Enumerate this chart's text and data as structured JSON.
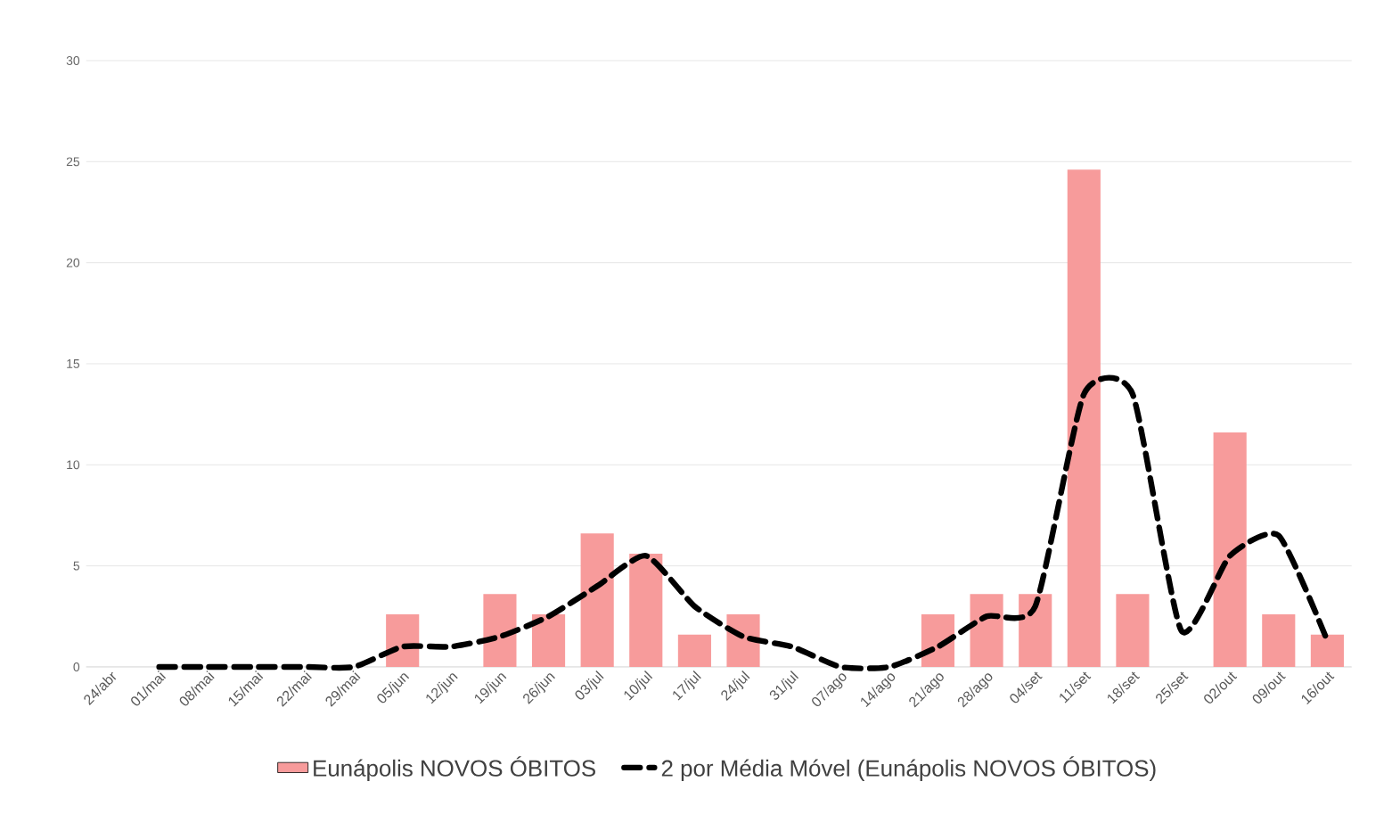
{
  "chart_data": {
    "type": "bar",
    "categories": [
      "24/abr",
      "01/mai",
      "08/mai",
      "15/mai",
      "22/mai",
      "29/mai",
      "05/jun",
      "12/jun",
      "19/jun",
      "26/jun",
      "03/jul",
      "10/jul",
      "17/jul",
      "24/jul",
      "31/jul",
      "07/ago",
      "14/ago",
      "21/ago",
      "28/ago",
      "04/set",
      "11/set",
      "18/set",
      "25/set",
      "02/out",
      "09/out",
      "16/out"
    ],
    "series": [
      {
        "name": "Eunápolis NOVOS ÓBITOS",
        "color": "#f79b9b",
        "values": [
          0,
          0,
          0,
          0,
          0,
          0,
          2.6,
          0,
          3.6,
          2.6,
          6.6,
          5.6,
          1.6,
          2.6,
          0,
          0,
          0,
          2.6,
          3.6,
          3.6,
          24.6,
          3.6,
          0,
          11.6,
          2.6,
          1.6
        ]
      },
      {
        "name": "2 por Média Móvel (Eunápolis NOVOS ÓBITOS)",
        "type": "line",
        "color": "#000000",
        "line_style": "dashed",
        "values": [
          null,
          0,
          0,
          0,
          0,
          0,
          1,
          1,
          1.5,
          2.5,
          4,
          5.5,
          3,
          1.5,
          1,
          0,
          0,
          1,
          2.5,
          3,
          13.5,
          13.5,
          1.8,
          5.5,
          6.5,
          1.3
        ]
      }
    ],
    "ylim": [
      0,
      30
    ],
    "yticks": [
      0,
      5,
      10,
      15,
      20,
      25,
      30
    ],
    "grid": "y",
    "legend": "bottom"
  }
}
